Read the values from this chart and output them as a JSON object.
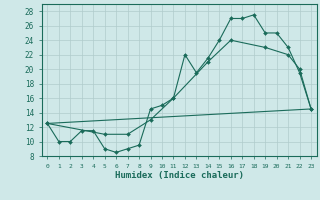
{
  "bg_color": "#cfe8e8",
  "grid_color": "#c0d8d8",
  "line_color": "#1a6b5a",
  "xlabel": "Humidex (Indice chaleur)",
  "xlim": [
    -0.5,
    23.5
  ],
  "ylim": [
    8,
    29
  ],
  "xticks": [
    0,
    1,
    2,
    3,
    4,
    5,
    6,
    7,
    8,
    9,
    10,
    11,
    12,
    13,
    14,
    15,
    16,
    17,
    18,
    19,
    20,
    21,
    22,
    23
  ],
  "yticks": [
    8,
    10,
    12,
    14,
    16,
    18,
    20,
    22,
    24,
    26,
    28
  ],
  "series1": {
    "x": [
      0,
      1,
      2,
      3,
      4,
      5,
      6,
      7,
      8,
      9,
      10,
      11,
      12,
      13,
      14,
      15,
      16,
      17,
      18,
      19,
      20,
      21,
      22,
      23
    ],
    "y": [
      12.5,
      10,
      10,
      11.5,
      11.5,
      9,
      8.5,
      9,
      9.5,
      14.5,
      15,
      16,
      22,
      19.5,
      21.5,
      24,
      27,
      27,
      27.5,
      25,
      25,
      23,
      19.5,
      14.5
    ]
  },
  "series2": {
    "x": [
      0,
      5,
      7,
      9,
      11,
      14,
      16,
      19,
      21,
      22,
      23
    ],
    "y": [
      12.5,
      11,
      11,
      13,
      16,
      21,
      24,
      23,
      22,
      20,
      14.5
    ]
  },
  "series3": {
    "x": [
      0,
      23
    ],
    "y": [
      12.5,
      14.5
    ]
  }
}
